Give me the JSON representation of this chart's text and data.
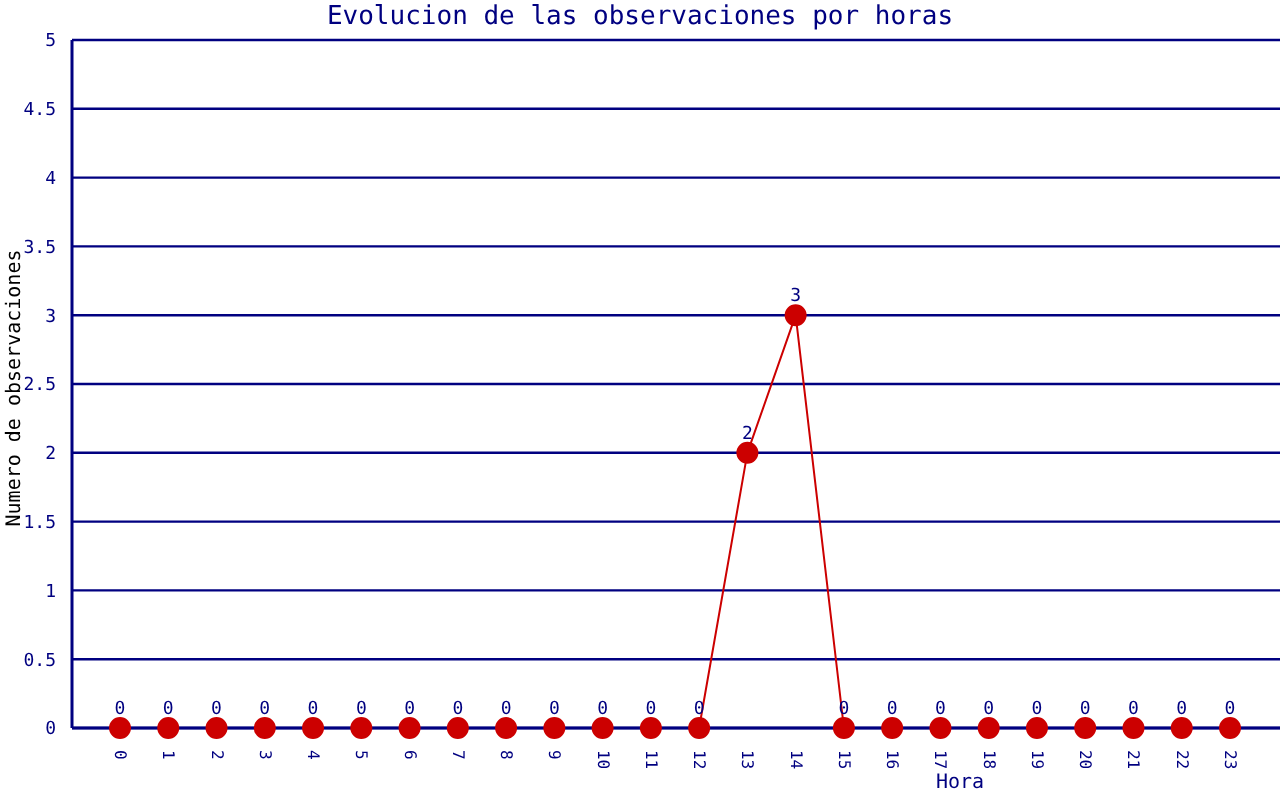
{
  "chart_data": {
    "type": "line",
    "title": "Evolucion de las observaciones por horas",
    "xlabel": "Hora",
    "ylabel": "Numero de observaciones",
    "categories": [
      "0",
      "1",
      "2",
      "3",
      "4",
      "5",
      "6",
      "7",
      "8",
      "9",
      "10",
      "11",
      "12",
      "13",
      "14",
      "15",
      "16",
      "17",
      "18",
      "19",
      "20",
      "21",
      "22",
      "23"
    ],
    "series": [
      {
        "color": "#cc0000",
        "values": [
          0,
          0,
          0,
          0,
          0,
          0,
          0,
          0,
          0,
          0,
          0,
          0,
          0,
          2,
          3,
          0,
          0,
          0,
          0,
          0,
          0,
          0,
          0,
          0
        ]
      }
    ],
    "ylim": [
      0,
      5
    ],
    "yticks": [
      0,
      0.5,
      1,
      1.5,
      2,
      2.5,
      3,
      3.5,
      4,
      4.5,
      5
    ],
    "grid": "y",
    "data_labels": true,
    "marker": "circle",
    "line_style": "solid"
  }
}
